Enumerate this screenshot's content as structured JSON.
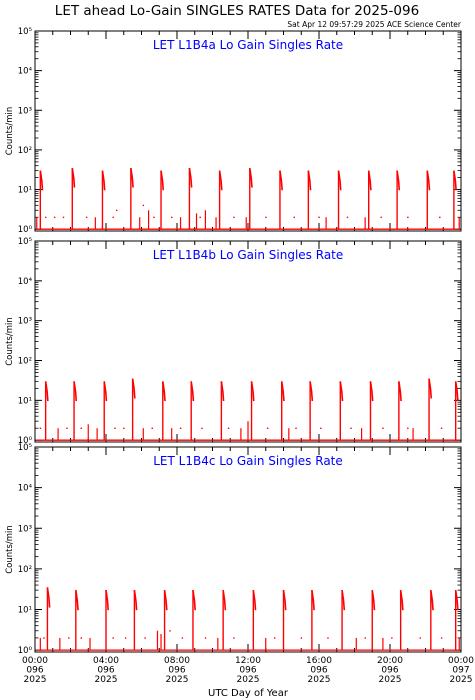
{
  "header": {
    "title": "LET ahead Lo-Gain SINGLES RATES Data for 2025-096",
    "stamp": "Sat Apr 12 09:57:29 2025 ACE Science Center"
  },
  "xaxis": {
    "label": "UTC Day of Year",
    "ticks": [
      {
        "hour": 0,
        "lines": [
          "00:00",
          "096",
          "2025"
        ]
      },
      {
        "hour": 4,
        "lines": [
          "04:00",
          "096",
          "2025"
        ]
      },
      {
        "hour": 8,
        "lines": [
          "08:00",
          "096",
          "2025"
        ]
      },
      {
        "hour": 12,
        "lines": [
          "12:00",
          "096",
          "2025"
        ]
      },
      {
        "hour": 16,
        "lines": [
          "16:00",
          "096",
          "2025"
        ]
      },
      {
        "hour": 20,
        "lines": [
          "20:00",
          "096",
          "2025"
        ]
      },
      {
        "hour": 24,
        "lines": [
          "00:00",
          "097",
          "2025"
        ]
      }
    ]
  },
  "colors": {
    "data": "#ff0000",
    "panel_title": "#0000ff",
    "axes": "#000000"
  },
  "chart_data": [
    {
      "type": "scatter",
      "title": "LET L1B4a Lo Gain Singles Rate",
      "ylabel": "Counts/min",
      "yscale": "log",
      "ylim": [
        0.9,
        100000
      ],
      "xlim": [
        0,
        24
      ],
      "ytick_labels": [
        "10⁰",
        "10¹",
        "10²",
        "10³",
        "10⁴",
        "10⁵"
      ],
      "bursts": [
        {
          "hour": 0.3,
          "peak": 30
        },
        {
          "hour": 2.1,
          "peak": 35
        },
        {
          "hour": 3.8,
          "peak": 30
        },
        {
          "hour": 5.4,
          "peak": 35
        },
        {
          "hour": 7.1,
          "peak": 30
        },
        {
          "hour": 8.7,
          "peak": 35
        },
        {
          "hour": 10.4,
          "peak": 30
        },
        {
          "hour": 12.1,
          "peak": 35
        },
        {
          "hour": 13.8,
          "peak": 30
        },
        {
          "hour": 15.4,
          "peak": 30
        },
        {
          "hour": 17.1,
          "peak": 30
        },
        {
          "hour": 18.8,
          "peak": 30
        },
        {
          "hour": 20.4,
          "peak": 30
        },
        {
          "hour": 22.1,
          "peak": 30
        },
        {
          "hour": 23.6,
          "peak": 30
        }
      ],
      "spikes": [
        {
          "hour": 0.1,
          "value": 2
        },
        {
          "hour": 3.4,
          "value": 2
        },
        {
          "hour": 5.9,
          "value": 2
        },
        {
          "hour": 6.4,
          "value": 3
        },
        {
          "hour": 8.2,
          "value": 2
        },
        {
          "hour": 9.1,
          "value": 2.5
        },
        {
          "hour": 9.6,
          "value": 3
        },
        {
          "hour": 10.2,
          "value": 2
        },
        {
          "hour": 11.9,
          "value": 2
        },
        {
          "hour": 16.4,
          "value": 2
        },
        {
          "hour": 18.6,
          "value": 2
        },
        {
          "hour": 23.9,
          "value": 2
        }
      ],
      "scatter": [
        {
          "hour": 0.6,
          "value": 2
        },
        {
          "hour": 1.1,
          "value": 2
        },
        {
          "hour": 1.6,
          "value": 2
        },
        {
          "hour": 2.9,
          "value": 2
        },
        {
          "hour": 4.4,
          "value": 2
        },
        {
          "hour": 4.6,
          "value": 3
        },
        {
          "hour": 6.1,
          "value": 4
        },
        {
          "hour": 6.7,
          "value": 2
        },
        {
          "hour": 7.7,
          "value": 2
        },
        {
          "hour": 9.3,
          "value": 2
        },
        {
          "hour": 11.2,
          "value": 2
        },
        {
          "hour": 13.0,
          "value": 2
        },
        {
          "hour": 14.6,
          "value": 2
        },
        {
          "hour": 16.0,
          "value": 2
        },
        {
          "hour": 17.6,
          "value": 2
        },
        {
          "hour": 19.5,
          "value": 2
        },
        {
          "hour": 21.0,
          "value": 2
        },
        {
          "hour": 22.8,
          "value": 2
        }
      ]
    },
    {
      "type": "scatter",
      "title": "LET L1B4b Lo Gain Singles Rate",
      "ylabel": "Counts/min",
      "yscale": "log",
      "ylim": [
        0.9,
        100000
      ],
      "xlim": [
        0,
        24
      ],
      "ytick_labels": [
        "10⁰",
        "10¹",
        "10²",
        "10³",
        "10⁴",
        "10⁵"
      ],
      "bursts": [
        {
          "hour": 0.6,
          "peak": 30
        },
        {
          "hour": 2.2,
          "peak": 30
        },
        {
          "hour": 3.9,
          "peak": 30
        },
        {
          "hour": 5.5,
          "peak": 35
        },
        {
          "hour": 7.2,
          "peak": 30
        },
        {
          "hour": 8.8,
          "peak": 30
        },
        {
          "hour": 10.5,
          "peak": 30
        },
        {
          "hour": 12.2,
          "peak": 30
        },
        {
          "hour": 13.9,
          "peak": 30
        },
        {
          "hour": 15.5,
          "peak": 30
        },
        {
          "hour": 17.2,
          "peak": 30
        },
        {
          "hour": 18.9,
          "peak": 30
        },
        {
          "hour": 20.5,
          "peak": 30
        },
        {
          "hour": 22.2,
          "peak": 35
        },
        {
          "hour": 23.7,
          "peak": 30
        }
      ],
      "spikes": [
        {
          "hour": 1.3,
          "value": 2
        },
        {
          "hour": 3.0,
          "value": 2.5
        },
        {
          "hour": 3.5,
          "value": 2
        },
        {
          "hour": 6.1,
          "value": 2
        },
        {
          "hour": 7.7,
          "value": 2
        },
        {
          "hour": 11.6,
          "value": 2
        },
        {
          "hour": 12.0,
          "value": 3
        },
        {
          "hour": 14.3,
          "value": 2
        },
        {
          "hour": 18.4,
          "value": 2
        },
        {
          "hour": 21.3,
          "value": 2
        }
      ],
      "scatter": [
        {
          "hour": 0.3,
          "value": 2
        },
        {
          "hour": 1.8,
          "value": 2
        },
        {
          "hour": 2.6,
          "value": 2
        },
        {
          "hour": 4.5,
          "value": 2
        },
        {
          "hour": 5.0,
          "value": 2
        },
        {
          "hour": 6.6,
          "value": 2
        },
        {
          "hour": 8.2,
          "value": 2
        },
        {
          "hour": 9.4,
          "value": 2
        },
        {
          "hour": 10.9,
          "value": 2
        },
        {
          "hour": 13.1,
          "value": 2
        },
        {
          "hour": 14.7,
          "value": 2
        },
        {
          "hour": 16.1,
          "value": 2
        },
        {
          "hour": 17.8,
          "value": 2
        },
        {
          "hour": 19.6,
          "value": 2
        },
        {
          "hour": 21.0,
          "value": 2
        },
        {
          "hour": 22.9,
          "value": 2
        }
      ]
    },
    {
      "type": "scatter",
      "title": "LET L1B4c Lo Gain Singles Rate",
      "ylabel": "Counts/min",
      "yscale": "log",
      "ylim": [
        0.9,
        100000
      ],
      "xlim": [
        0,
        24
      ],
      "ytick_labels": [
        "10⁰",
        "10¹",
        "10²",
        "10³",
        "10⁴",
        "10⁵"
      ],
      "bursts": [
        {
          "hour": 0.7,
          "peak": 35
        },
        {
          "hour": 2.3,
          "peak": 30
        },
        {
          "hour": 4.0,
          "peak": 30
        },
        {
          "hour": 5.6,
          "peak": 30
        },
        {
          "hour": 7.3,
          "peak": 30
        },
        {
          "hour": 8.9,
          "peak": 30
        },
        {
          "hour": 10.6,
          "peak": 30
        },
        {
          "hour": 12.3,
          "peak": 30
        },
        {
          "hour": 14.0,
          "peak": 30
        },
        {
          "hour": 15.6,
          "peak": 30
        },
        {
          "hour": 17.3,
          "peak": 30
        },
        {
          "hour": 19.0,
          "peak": 30
        },
        {
          "hour": 20.6,
          "peak": 30
        },
        {
          "hour": 22.3,
          "peak": 30
        },
        {
          "hour": 23.7,
          "peak": 30
        }
      ],
      "spikes": [
        {
          "hour": 0.3,
          "value": 2
        },
        {
          "hour": 1.4,
          "value": 2
        },
        {
          "hour": 3.1,
          "value": 2
        },
        {
          "hour": 6.9,
          "value": 3
        },
        {
          "hour": 7.1,
          "value": 2.5
        },
        {
          "hour": 10.3,
          "value": 2
        },
        {
          "hour": 13.0,
          "value": 2
        },
        {
          "hour": 18.1,
          "value": 2
        },
        {
          "hour": 19.6,
          "value": 2
        },
        {
          "hour": 23.9,
          "value": 2
        }
      ],
      "scatter": [
        {
          "hour": 0.5,
          "value": 2
        },
        {
          "hour": 1.9,
          "value": 2
        },
        {
          "hour": 2.6,
          "value": 2
        },
        {
          "hour": 4.4,
          "value": 2
        },
        {
          "hour": 5.1,
          "value": 2
        },
        {
          "hour": 6.2,
          "value": 2
        },
        {
          "hour": 7.6,
          "value": 3
        },
        {
          "hour": 8.3,
          "value": 2
        },
        {
          "hour": 9.6,
          "value": 2
        },
        {
          "hour": 11.2,
          "value": 2
        },
        {
          "hour": 13.5,
          "value": 2
        },
        {
          "hour": 15.0,
          "value": 2
        },
        {
          "hour": 16.5,
          "value": 2
        },
        {
          "hour": 18.6,
          "value": 2
        },
        {
          "hour": 20.1,
          "value": 2
        },
        {
          "hour": 21.7,
          "value": 2
        },
        {
          "hour": 22.9,
          "value": 2
        }
      ]
    }
  ]
}
